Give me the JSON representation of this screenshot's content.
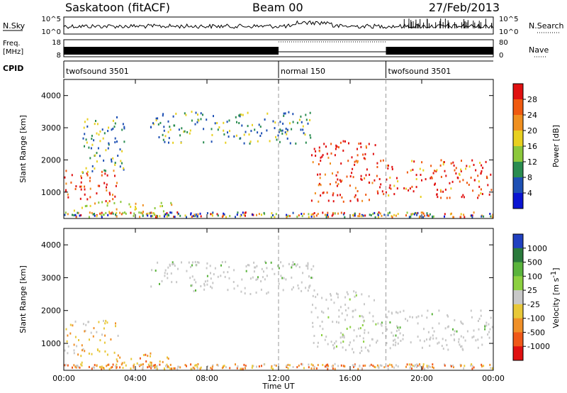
{
  "header": {
    "title": "Saskatoon (fitACF)",
    "beam": "Beam 00",
    "date": "27/Feb/2013"
  },
  "nsky_panel": {
    "left_label": "N.Sky",
    "left_ticks": [
      "10^5",
      "10^0"
    ],
    "right_ticks": [
      "10^5",
      "10^0"
    ],
    "right_label": "N.Search"
  },
  "freq_panel": {
    "label_line1": "Freq.",
    "label_line2": "[MHz]",
    "left_ticks": [
      "18",
      "8"
    ],
    "right_ticks": [
      "80",
      "0"
    ],
    "right_label": "Nave"
  },
  "cpid_panel": {
    "label": "CPID",
    "segments": [
      {
        "text": "twofsound 3501",
        "start_hour": 0
      },
      {
        "text": "normal 150",
        "start_hour": 12
      },
      {
        "text": "twofsound 3501",
        "start_hour": 18
      }
    ]
  },
  "power_colorbar": {
    "label": "Power [dB]",
    "ticks": [
      "28",
      "24",
      "20",
      "16",
      "12",
      "8",
      "4"
    ],
    "colors": [
      "#e01010",
      "#f05a10",
      "#f09020",
      "#e8d020",
      "#8cc83c",
      "#2a8c50",
      "#1e50b4",
      "#0a14d2"
    ]
  },
  "velocity_colorbar": {
    "label_main": "Velocity [m s",
    "label_sup": "-1",
    "label_end": "]",
    "ticks": [
      "1000",
      "500",
      "100",
      "25",
      "-25",
      "-100",
      "-500",
      "-1000"
    ],
    "colors": [
      "#2040c0",
      "#2a7a3c",
      "#5ab43c",
      "#8cd040",
      "#c8c8c8",
      "#e8c838",
      "#f09028",
      "#f05818",
      "#e01010"
    ]
  },
  "chart_data": [
    {
      "type": "heatmap",
      "title": "Power",
      "ylabel": "Slant Range [km]",
      "xlabel": "Time UT",
      "xlim": [
        "00:00",
        "24:00"
      ],
      "ylim": [
        180,
        4500
      ],
      "y_ticks": [
        1000,
        2000,
        3000,
        4000
      ],
      "x_ticks": [
        "00:00",
        "04:00",
        "08:00",
        "12:00",
        "16:00",
        "20:00",
        "00:00"
      ],
      "echo_regions": [
        {
          "start_hour": 0,
          "end_hour": 3,
          "range_km": [
            700,
            1700
          ],
          "power_db": "20-28"
        },
        {
          "start_hour": 0.5,
          "end_hour": 6,
          "range_km": [
            300,
            700
          ],
          "power_db": "12-24"
        },
        {
          "start_hour": 1,
          "end_hour": 3.5,
          "range_km": [
            1600,
            3400
          ],
          "power_db": "8-20"
        },
        {
          "start_hour": 4.8,
          "end_hour": 14,
          "range_km": [
            2500,
            3500
          ],
          "power_db": "4-20"
        },
        {
          "start_hour": 13.8,
          "end_hour": 17.5,
          "range_km": [
            700,
            2600
          ],
          "power_db": "12-28"
        },
        {
          "start_hour": 17.5,
          "end_hour": 24,
          "range_km": [
            800,
            2000
          ],
          "power_db": "16-28"
        }
      ]
    },
    {
      "type": "heatmap",
      "title": "Velocity",
      "ylabel": "Slant Range [km]",
      "xlabel": "Time UT",
      "xlim": [
        "00:00",
        "24:00"
      ],
      "ylim": [
        180,
        4500
      ],
      "y_ticks": [
        1000,
        2000,
        3000,
        4000
      ],
      "x_ticks": [
        "00:00",
        "04:00",
        "08:00",
        "12:00",
        "16:00",
        "20:00",
        "00:00"
      ],
      "echo_regions": [
        {
          "start_hour": 0,
          "end_hour": 3,
          "range_km": [
            700,
            1700
          ],
          "velocity_ms": "-100 to -25"
        },
        {
          "start_hour": 0.5,
          "end_hour": 6,
          "range_km": [
            300,
            700
          ],
          "velocity_ms": "-500 to -100"
        },
        {
          "start_hour": 4.8,
          "end_hour": 14,
          "range_km": [
            2500,
            3500
          ],
          "velocity_ms": "-25 to 25"
        },
        {
          "start_hour": 13.8,
          "end_hour": 17.5,
          "range_km": [
            700,
            2600
          ],
          "velocity_ms": "-25 to 25"
        },
        {
          "start_hour": 17.5,
          "end_hour": 24,
          "range_km": [
            800,
            2000
          ],
          "velocity_ms": "-25 to 25"
        }
      ]
    }
  ]
}
